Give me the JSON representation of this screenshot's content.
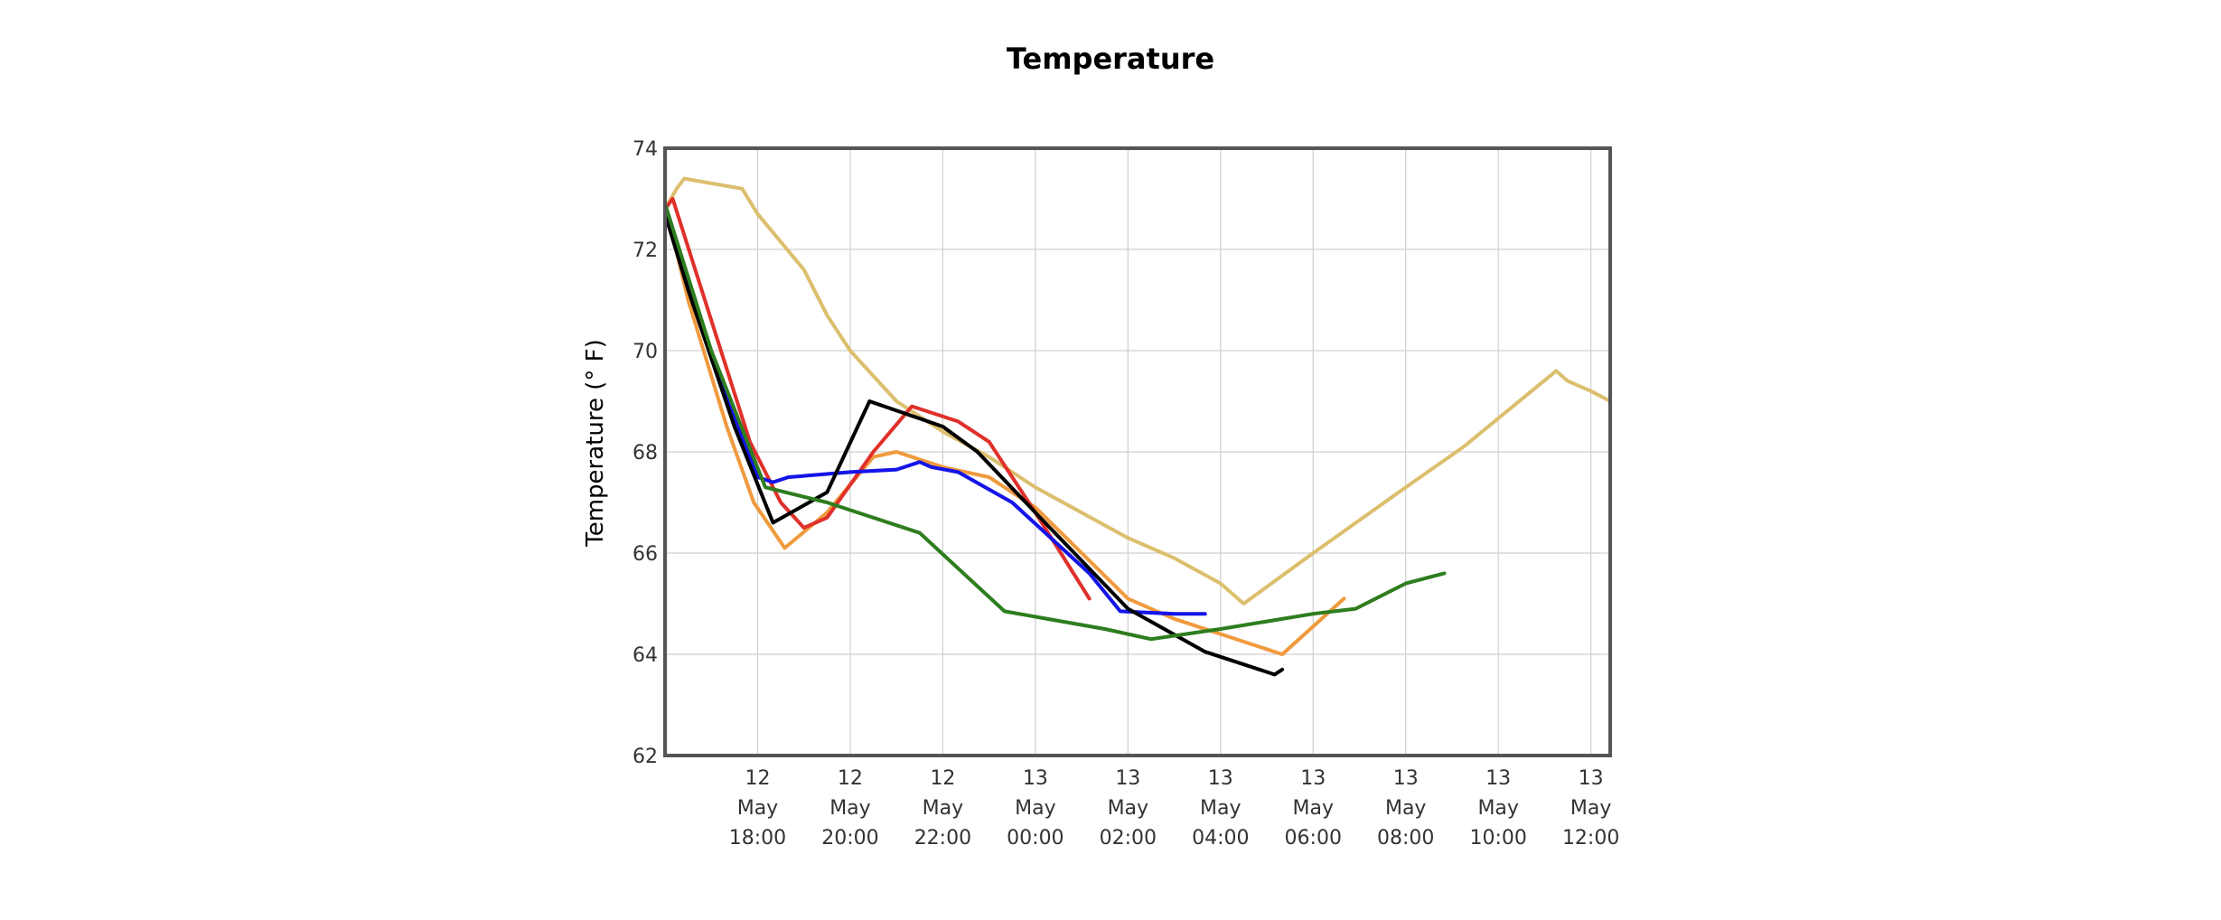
{
  "chart_data": {
    "type": "line",
    "title": "Temperature",
    "xlabel": "",
    "ylabel": "Temperature (° F)",
    "ylim": [
      62,
      74
    ],
    "yticks": [
      62,
      64,
      66,
      68,
      70,
      72,
      74
    ],
    "xlim": [
      "2023-05-12T16:00",
      "2023-05-13T12:25"
    ],
    "xticks": [
      {
        "t": "2023-05-12T18:00",
        "lines": [
          "12",
          "May",
          "18:00"
        ]
      },
      {
        "t": "2023-05-12T20:00",
        "lines": [
          "12",
          "May",
          "20:00"
        ]
      },
      {
        "t": "2023-05-12T22:00",
        "lines": [
          "12",
          "May",
          "22:00"
        ]
      },
      {
        "t": "2023-05-13T00:00",
        "lines": [
          "13",
          "May",
          "00:00"
        ]
      },
      {
        "t": "2023-05-13T02:00",
        "lines": [
          "13",
          "May",
          "02:00"
        ]
      },
      {
        "t": "2023-05-13T04:00",
        "lines": [
          "13",
          "May",
          "04:00"
        ]
      },
      {
        "t": "2023-05-13T06:00",
        "lines": [
          "13",
          "May",
          "06:00"
        ]
      },
      {
        "t": "2023-05-13T08:00",
        "lines": [
          "13",
          "May",
          "08:00"
        ]
      },
      {
        "t": "2023-05-13T10:00",
        "lines": [
          "13",
          "May",
          "10:00"
        ]
      },
      {
        "t": "2023-05-13T12:00",
        "lines": [
          "13",
          "May",
          "12:00"
        ]
      }
    ],
    "grid": true,
    "series": [
      {
        "color": "#dcbf6e",
        "points": [
          [
            "2023-05-12T16:00",
            72.8
          ],
          [
            "2023-05-12T16:15",
            73.2
          ],
          [
            "2023-05-12T16:25",
            73.4
          ],
          [
            "2023-05-12T17:40",
            73.2
          ],
          [
            "2023-05-12T18:00",
            72.7
          ],
          [
            "2023-05-12T19:00",
            71.6
          ],
          [
            "2023-05-12T19:30",
            70.7
          ],
          [
            "2023-05-12T20:00",
            70.0
          ],
          [
            "2023-05-12T21:00",
            69.0
          ],
          [
            "2023-05-12T22:00",
            68.4
          ],
          [
            "2023-05-12T23:00",
            67.9
          ],
          [
            "2023-05-13T00:00",
            67.3
          ],
          [
            "2023-05-13T01:00",
            66.8
          ],
          [
            "2023-05-13T02:00",
            66.3
          ],
          [
            "2023-05-13T03:00",
            65.9
          ],
          [
            "2023-05-13T04:00",
            65.4
          ],
          [
            "2023-05-13T04:30",
            65.0
          ],
          [
            "2023-05-13T06:00",
            66.0
          ],
          [
            "2023-05-13T08:00",
            67.3
          ],
          [
            "2023-05-13T09:15",
            68.1
          ],
          [
            "2023-05-13T11:15",
            69.6
          ],
          [
            "2023-05-13T11:30",
            69.4
          ],
          [
            "2023-05-13T12:00",
            69.2
          ],
          [
            "2023-05-13T12:25",
            69.0
          ]
        ]
      },
      {
        "color": "#f09a3e",
        "points": [
          [
            "2023-05-12T16:00",
            72.9
          ],
          [
            "2023-05-12T16:30",
            71.0
          ],
          [
            "2023-05-12T17:20",
            68.5
          ],
          [
            "2023-05-12T17:55",
            67.0
          ],
          [
            "2023-05-12T18:35",
            66.1
          ],
          [
            "2023-05-12T19:30",
            66.8
          ],
          [
            "2023-05-12T20:30",
            67.9
          ],
          [
            "2023-05-12T21:00",
            68.0
          ],
          [
            "2023-05-12T22:00",
            67.7
          ],
          [
            "2023-05-12T23:00",
            67.5
          ],
          [
            "2023-05-13T00:00",
            66.9
          ],
          [
            "2023-05-13T02:00",
            65.1
          ],
          [
            "2023-05-13T03:00",
            64.7
          ],
          [
            "2023-05-13T05:20",
            64.0
          ],
          [
            "2023-05-13T06:40",
            65.1
          ]
        ]
      },
      {
        "color": "#e0302a",
        "points": [
          [
            "2023-05-12T16:00",
            72.8
          ],
          [
            "2023-05-12T16:10",
            73.0
          ],
          [
            "2023-05-12T17:50",
            68.2
          ],
          [
            "2023-05-12T18:30",
            67.0
          ],
          [
            "2023-05-12T19:00",
            66.5
          ],
          [
            "2023-05-12T19:30",
            66.7
          ],
          [
            "2023-05-12T20:30",
            68.0
          ],
          [
            "2023-05-12T21:20",
            68.9
          ],
          [
            "2023-05-12T22:20",
            68.6
          ],
          [
            "2023-05-12T23:00",
            68.2
          ],
          [
            "2023-05-13T00:00",
            66.8
          ],
          [
            "2023-05-13T01:10",
            65.1
          ]
        ]
      },
      {
        "color": "#1414e8",
        "points": [
          [
            "2023-05-12T16:00",
            72.9
          ],
          [
            "2023-05-12T17:00",
            69.9
          ],
          [
            "2023-05-12T18:00",
            67.5
          ],
          [
            "2023-05-12T18:20",
            67.4
          ],
          [
            "2023-05-12T18:40",
            67.5
          ],
          [
            "2023-05-12T20:00",
            67.6
          ],
          [
            "2023-05-12T21:00",
            67.65
          ],
          [
            "2023-05-12T21:30",
            67.8
          ],
          [
            "2023-05-12T21:45",
            67.7
          ],
          [
            "2023-05-12T22:20",
            67.6
          ],
          [
            "2023-05-12T23:30",
            67.0
          ],
          [
            "2023-05-13T01:10",
            65.6
          ],
          [
            "2023-05-13T01:50",
            64.85
          ],
          [
            "2023-05-13T03:00",
            64.8
          ],
          [
            "2023-05-13T03:40",
            64.8
          ]
        ]
      },
      {
        "color": "#000000",
        "points": [
          [
            "2023-05-12T16:00",
            72.7
          ],
          [
            "2023-05-12T16:30",
            71.2
          ],
          [
            "2023-05-12T17:30",
            68.5
          ],
          [
            "2023-05-12T18:20",
            66.6
          ],
          [
            "2023-05-12T19:30",
            67.2
          ],
          [
            "2023-05-12T20:25",
            69.0
          ],
          [
            "2023-05-12T22:00",
            68.5
          ],
          [
            "2023-05-12T22:45",
            68.0
          ],
          [
            "2023-05-13T00:00",
            66.8
          ],
          [
            "2023-05-13T02:00",
            64.9
          ],
          [
            "2023-05-13T03:40",
            64.05
          ],
          [
            "2023-05-13T05:10",
            63.6
          ],
          [
            "2023-05-13T05:20",
            63.7
          ]
        ]
      },
      {
        "color": "#2e7d1f",
        "points": [
          [
            "2023-05-12T16:00",
            72.9
          ],
          [
            "2023-05-12T17:00",
            70.0
          ],
          [
            "2023-05-12T18:10",
            67.3
          ],
          [
            "2023-05-12T19:30",
            67.0
          ],
          [
            "2023-05-12T21:30",
            66.4
          ],
          [
            "2023-05-12T23:20",
            64.85
          ],
          [
            "2023-05-13T01:30",
            64.5
          ],
          [
            "2023-05-13T02:30",
            64.3
          ],
          [
            "2023-05-13T04:00",
            64.5
          ],
          [
            "2023-05-13T06:00",
            64.8
          ],
          [
            "2023-05-13T06:55",
            64.9
          ],
          [
            "2023-05-13T08:00",
            65.4
          ],
          [
            "2023-05-13T08:50",
            65.6
          ]
        ]
      }
    ]
  }
}
